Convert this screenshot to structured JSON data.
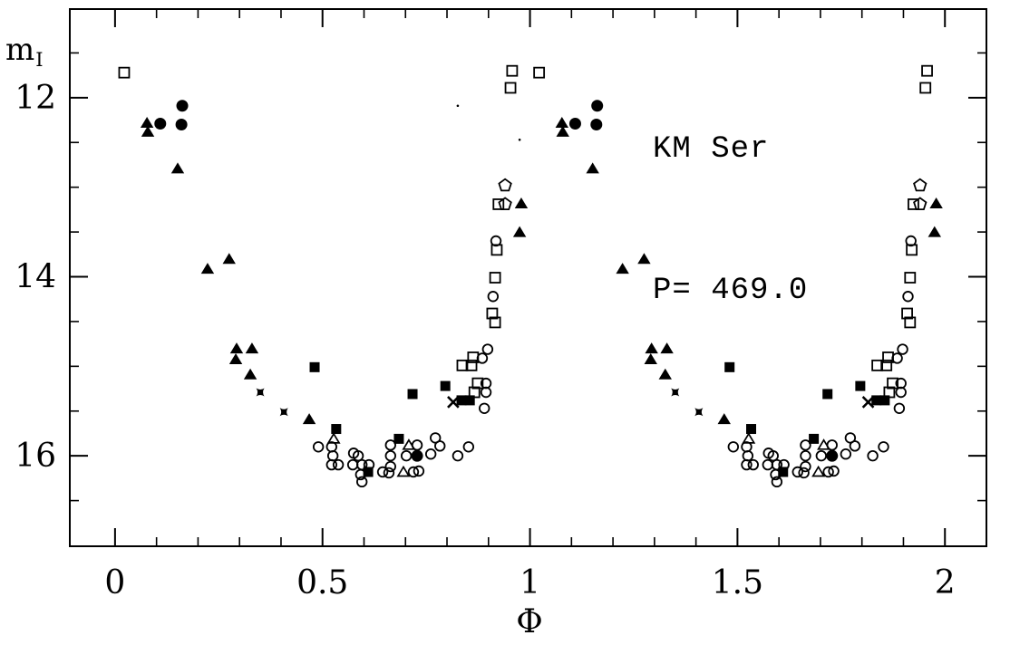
{
  "chart_data": {
    "type": "scatter",
    "title": "KM Ser",
    "period_label": "P= 469.0",
    "xlabel": "Φ",
    "ylabel_main": "m",
    "ylabel_sub": "I",
    "colors": {
      "foreground": "#000000",
      "background": "#ffffff"
    },
    "x_axis": {
      "lim": [
        -0.109,
        2.1
      ],
      "major_ticks": [
        0,
        0.5,
        1,
        1.5,
        2
      ],
      "major_tick_labels": [
        "0",
        "0.5",
        "1",
        "1.5",
        "2"
      ],
      "minor_tick_step": 0.1
    },
    "y_axis": {
      "lim": [
        11.01,
        17.01
      ],
      "major_ticks": [
        12,
        14,
        16
      ],
      "major_tick_labels": [
        "12",
        "14",
        "16"
      ],
      "minor_tick_step": 0.5,
      "values_increase_downward": true
    },
    "plotted_twice": true,
    "duplicate_phase_offset": 1.0,
    "series": [
      {
        "name": "open-square",
        "marker": "open-square",
        "points": [
          [
            0.022,
            11.72
          ],
          [
            0.953,
            11.89
          ],
          [
            0.957,
            11.7
          ],
          [
            0.924,
            13.19
          ],
          [
            0.92,
            13.7
          ],
          [
            0.916,
            14.01
          ],
          [
            0.909,
            14.41
          ],
          [
            0.916,
            14.51
          ],
          [
            0.837,
            14.99
          ],
          [
            0.859,
            14.99
          ],
          [
            0.863,
            14.9
          ],
          [
            0.874,
            15.19
          ],
          [
            0.866,
            15.29
          ]
        ]
      },
      {
        "name": "filled-square",
        "marker": "filled-square",
        "points": [
          [
            0.481,
            15.01
          ],
          [
            0.533,
            15.7
          ],
          [
            0.61,
            16.18
          ],
          [
            0.684,
            15.81
          ],
          [
            0.717,
            15.31
          ],
          [
            0.796,
            15.22
          ],
          [
            0.835,
            15.38
          ],
          [
            0.855,
            15.38
          ]
        ]
      },
      {
        "name": "open-circle",
        "marker": "open-circle",
        "points": [
          [
            0.49,
            15.9
          ],
          [
            0.522,
            15.9
          ],
          [
            0.525,
            16.0
          ],
          [
            0.522,
            16.1
          ],
          [
            0.538,
            16.1
          ],
          [
            0.575,
            15.97
          ],
          [
            0.586,
            16.0
          ],
          [
            0.573,
            16.1
          ],
          [
            0.595,
            16.1
          ],
          [
            0.612,
            16.1
          ],
          [
            0.592,
            16.21
          ],
          [
            0.595,
            16.29
          ],
          [
            0.664,
            15.88
          ],
          [
            0.728,
            15.88
          ],
          [
            0.664,
            16.0
          ],
          [
            0.702,
            16.0
          ],
          [
            0.761,
            15.98
          ],
          [
            0.664,
            16.12
          ],
          [
            0.645,
            16.18
          ],
          [
            0.66,
            16.19
          ],
          [
            0.719,
            16.18
          ],
          [
            0.732,
            16.17
          ],
          [
            0.772,
            15.8
          ],
          [
            0.783,
            15.89
          ],
          [
            0.826,
            16.0
          ],
          [
            0.852,
            15.9
          ],
          [
            0.89,
            15.47
          ],
          [
            0.894,
            15.19
          ],
          [
            0.894,
            15.29
          ],
          [
            0.885,
            14.91
          ],
          [
            0.898,
            14.81
          ],
          [
            0.911,
            14.22
          ],
          [
            0.918,
            13.6
          ]
        ]
      },
      {
        "name": "filled-circle",
        "marker": "filled-circle",
        "points": [
          [
            0.162,
            12.09
          ],
          [
            0.109,
            12.29
          ],
          [
            0.16,
            12.3
          ],
          [
            0.728,
            16.0
          ]
        ]
      },
      {
        "name": "filled-triangle",
        "marker": "filled-triangle",
        "points": [
          [
            0.077,
            12.28
          ],
          [
            0.079,
            12.38
          ],
          [
            0.151,
            12.79
          ],
          [
            0.223,
            13.91
          ],
          [
            0.275,
            13.8
          ],
          [
            0.293,
            14.8
          ],
          [
            0.33,
            14.8
          ],
          [
            0.291,
            14.92
          ],
          [
            0.326,
            15.09
          ],
          [
            0.468,
            15.59
          ],
          [
            0.975,
            13.5
          ],
          [
            0.979,
            13.18
          ]
        ]
      },
      {
        "name": "open-triangle",
        "marker": "open-triangle",
        "points": [
          [
            0.527,
            15.81
          ],
          [
            0.708,
            15.88
          ],
          [
            0.695,
            16.18
          ]
        ]
      },
      {
        "name": "open-pentagon",
        "marker": "open-pentagon",
        "points": [
          [
            0.94,
            12.98
          ],
          [
            0.94,
            13.19
          ]
        ]
      },
      {
        "name": "four-point-star",
        "marker": "four-point-star",
        "points": [
          [
            0.35,
            15.29
          ],
          [
            0.407,
            15.51
          ]
        ]
      },
      {
        "name": "x-cross",
        "marker": "x-cross",
        "points": [
          [
            0.815,
            15.4
          ]
        ]
      }
    ],
    "artifacts": {
      "specks": [
        [
          0.826,
          12.09
        ],
        [
          0.975,
          12.47
        ]
      ]
    }
  }
}
